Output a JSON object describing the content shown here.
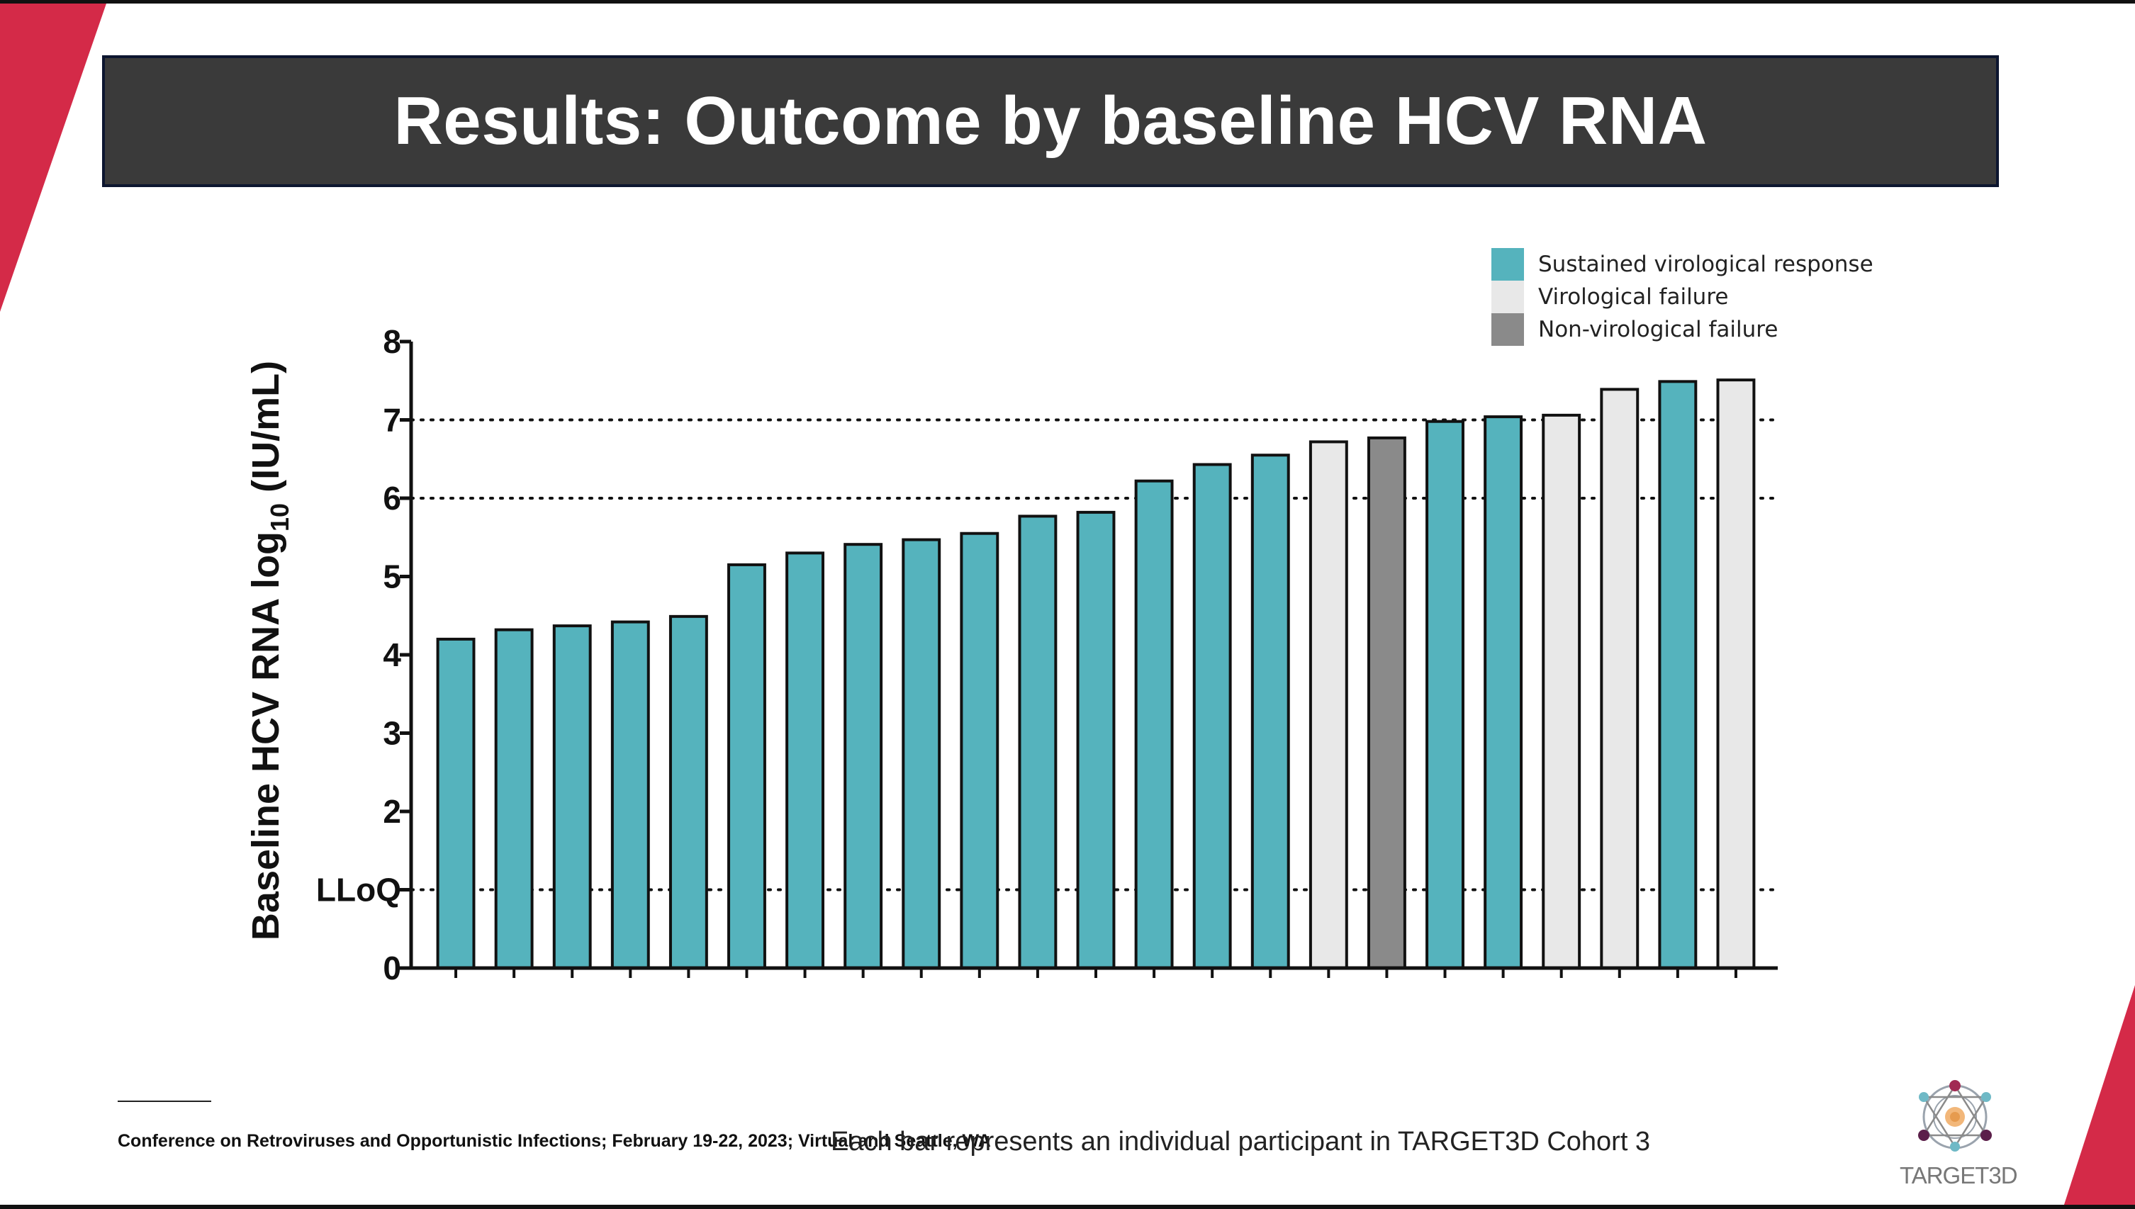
{
  "slide": {
    "title": "Results: Outcome by baseline HCV RNA",
    "footnote": "Conference on Retroviruses and Opportunistic Infections; February 19-22, 2023; Virtual and Seattle, WA",
    "caption": "Each bar represents an individual participant in TARGET3D Cohort 3",
    "logo_text": "TARGET3D",
    "colors": {
      "accent_red": "#d42a48",
      "title_bg": "#3a3a3a",
      "title_border": "#0d1630"
    }
  },
  "legend": {
    "items": [
      {
        "label": "Sustained virological response",
        "color": "#55b3bd"
      },
      {
        "label": "Virological failure",
        "color": "#e8e8e8"
      },
      {
        "label": "Non-virological failure",
        "color": "#8a8a8a"
      }
    ]
  },
  "chart_data": {
    "type": "bar",
    "ylabel": "Baseline HCV RNA log10 (IU/mL)",
    "ylim": [
      0,
      8
    ],
    "yticks": [
      {
        "value": 0,
        "label": "0"
      },
      {
        "value": 1,
        "label": "LLoQ"
      },
      {
        "value": 2,
        "label": "2"
      },
      {
        "value": 3,
        "label": "3"
      },
      {
        "value": 4,
        "label": "4"
      },
      {
        "value": 5,
        "label": "5"
      },
      {
        "value": 6,
        "label": "6"
      },
      {
        "value": 7,
        "label": "7"
      },
      {
        "value": 8,
        "label": "8"
      }
    ],
    "reference_lines": [
      1,
      6,
      7
    ],
    "bars": [
      {
        "value": 4.2,
        "outcome": "Sustained virological response"
      },
      {
        "value": 4.32,
        "outcome": "Sustained virological response"
      },
      {
        "value": 4.37,
        "outcome": "Sustained virological response"
      },
      {
        "value": 4.42,
        "outcome": "Sustained virological response"
      },
      {
        "value": 4.49,
        "outcome": "Sustained virological response"
      },
      {
        "value": 5.15,
        "outcome": "Sustained virological response"
      },
      {
        "value": 5.3,
        "outcome": "Sustained virological response"
      },
      {
        "value": 5.41,
        "outcome": "Sustained virological response"
      },
      {
        "value": 5.47,
        "outcome": "Sustained virological response"
      },
      {
        "value": 5.55,
        "outcome": "Sustained virological response"
      },
      {
        "value": 5.77,
        "outcome": "Sustained virological response"
      },
      {
        "value": 5.82,
        "outcome": "Sustained virological response"
      },
      {
        "value": 6.22,
        "outcome": "Sustained virological response"
      },
      {
        "value": 6.43,
        "outcome": "Sustained virological response"
      },
      {
        "value": 6.55,
        "outcome": "Sustained virological response"
      },
      {
        "value": 6.72,
        "outcome": "Virological failure"
      },
      {
        "value": 6.77,
        "outcome": "Non-virological failure"
      },
      {
        "value": 6.98,
        "outcome": "Sustained virological response"
      },
      {
        "value": 7.04,
        "outcome": "Sustained virological response"
      },
      {
        "value": 7.06,
        "outcome": "Virological failure"
      },
      {
        "value": 7.39,
        "outcome": "Virological failure"
      },
      {
        "value": 7.49,
        "outcome": "Sustained virological response"
      },
      {
        "value": 7.51,
        "outcome": "Virological failure"
      }
    ]
  }
}
